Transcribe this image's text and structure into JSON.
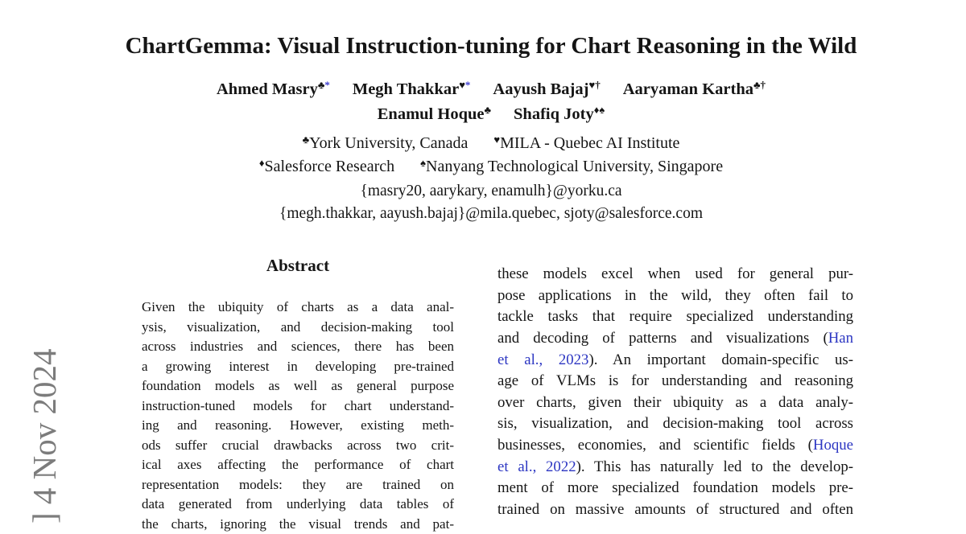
{
  "colors": {
    "background": "#ffffff",
    "text": "#151515",
    "citation_blue": "#2c36c2",
    "star_blue": "#3c3cce",
    "watermark_gray": "#7c7c7c"
  },
  "watermark": {
    "text": "] 4 Nov 2024"
  },
  "header": {
    "title": "ChartGemma: Visual Instruction-tuning for Chart Reasoning in the Wild",
    "author_rows": [
      [
        {
          "name": "Ahmed Masry",
          "sups": [
            {
              "t": "♣",
              "blue": false
            },
            {
              "t": "*",
              "blue": true
            }
          ]
        },
        {
          "name": "Megh Thakkar",
          "sups": [
            {
              "t": "♥",
              "blue": false
            },
            {
              "t": "*",
              "blue": true
            }
          ]
        },
        {
          "name": "Aayush Bajaj",
          "sups": [
            {
              "t": "♥",
              "blue": false
            },
            {
              "t": "†",
              "blue": false
            }
          ]
        },
        {
          "name": "Aaryaman Kartha",
          "sups": [
            {
              "t": "♣",
              "blue": false
            },
            {
              "t": "†",
              "blue": false
            }
          ]
        }
      ],
      [
        {
          "name": "Enamul Hoque",
          "sups": [
            {
              "t": "♣",
              "blue": false
            }
          ]
        },
        {
          "name": "Shafiq Joty",
          "sups": [
            {
              "t": "♦",
              "blue": false
            },
            {
              "t": "♠",
              "blue": false
            }
          ]
        }
      ]
    ],
    "affiliation_rows": [
      [
        {
          "sup": "♣",
          "text": "York University, Canada"
        },
        {
          "sup": "♥",
          "text": "MILA - Quebec AI Institute"
        }
      ],
      [
        {
          "sup": "♦",
          "text": "Salesforce Research"
        },
        {
          "sup": "♠",
          "text": "Nanyang Technological University, Singapore"
        }
      ]
    ],
    "emails": [
      "{masry20, aarykary, enamulh}@yorku.ca",
      "{megh.thakkar, aayush.bajaj}@mila.quebec, sjoty@salesforce.com"
    ]
  },
  "abstract": {
    "heading": "Abstract",
    "lines": [
      "Given the ubiquity of charts as a data anal-",
      "ysis, visualization, and decision-making tool",
      "across industries and sciences, there has been",
      "a growing interest in developing pre-trained",
      "foundation models as well as general purpose",
      "instruction-tuned models for chart understand-",
      "ing and reasoning. However, existing meth-",
      "ods suffer crucial drawbacks across two crit-",
      "ical axes affecting the performance of chart",
      "representation models: they are trained on",
      "data generated from underlying data tables of",
      "the charts, ignoring the visual trends and pat-"
    ]
  },
  "intro_column": {
    "lines": [
      [
        {
          "t": "these models excel when used for general pur-"
        }
      ],
      [
        {
          "t": "pose applications in the wild, they often fail to"
        }
      ],
      [
        {
          "t": "tackle tasks that require specialized understanding"
        }
      ],
      [
        {
          "t": "and decoding of patterns and visualizations ("
        },
        {
          "t": "Han",
          "link": true
        }
      ],
      [
        {
          "t": "et al., 2023",
          "link": true
        },
        {
          "t": "). An important domain-specific us-"
        }
      ],
      [
        {
          "t": "age of VLMs is for understanding and reasoning"
        }
      ],
      [
        {
          "t": "over charts, given their ubiquity as a data analy-"
        }
      ],
      [
        {
          "t": "sis, visualization, and decision-making tool across"
        }
      ],
      [
        {
          "t": "businesses, economies, and scientific fields ("
        },
        {
          "t": "Hoque",
          "link": true
        }
      ],
      [
        {
          "t": "et al., 2022",
          "link": true
        },
        {
          "t": "). This has naturally led to the develop-"
        }
      ],
      [
        {
          "t": "ment of more specialized foundation models pre-"
        }
      ],
      [
        {
          "t": "trained on massive amounts of structured and often"
        }
      ]
    ]
  }
}
